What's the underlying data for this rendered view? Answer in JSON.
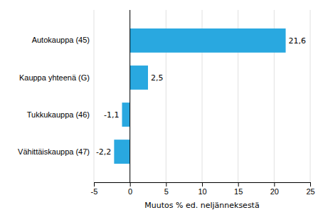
{
  "chart_data": {
    "type": "bar",
    "orientation": "horizontal",
    "categories": [
      "Vähittäiskauppa (47)",
      "Tukkukauppa (46)",
      "Kauppa yhteenä (G)",
      "Autokauppa (45)"
    ],
    "values": [
      -2.2,
      -1.1,
      2.5,
      21.6
    ],
    "value_labels": [
      "-2,2",
      "-1,1",
      "2,5",
      "21,6"
    ],
    "data_labels": true,
    "color": "#29a8e0",
    "xlabel": "Muutos % ed. neljänneksestä",
    "xlim": [
      -5,
      25
    ],
    "xticks": [
      -5,
      0,
      5,
      10,
      15,
      20,
      25
    ],
    "grid": true
  }
}
